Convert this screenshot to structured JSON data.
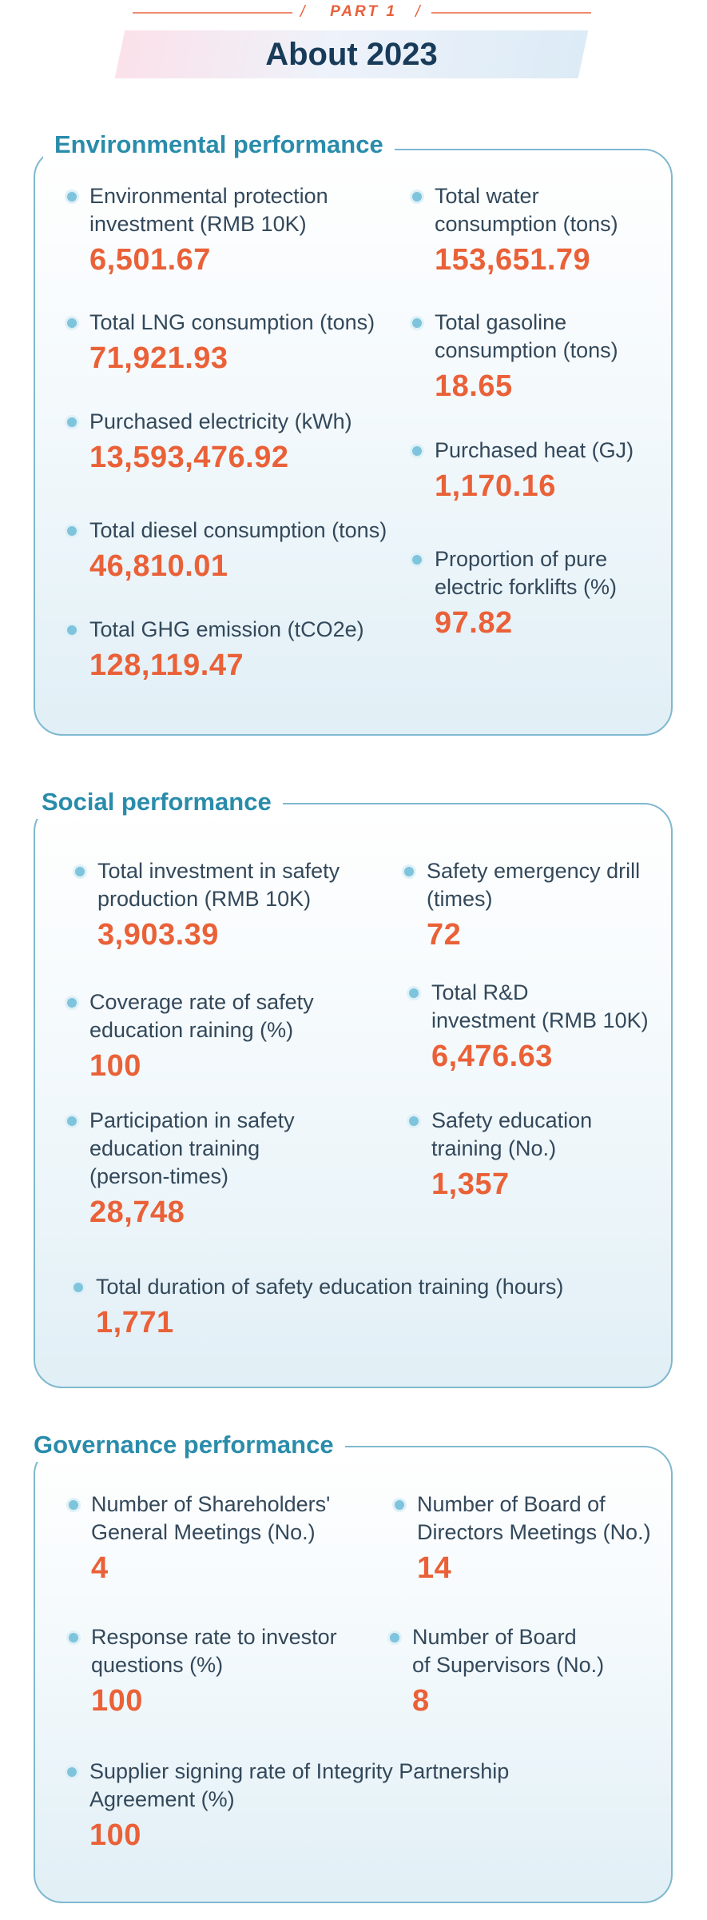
{
  "header": {
    "part_label": "PART 1",
    "slash": "/",
    "title": "About 2023"
  },
  "environmental": {
    "title": "Environmental performance",
    "items": [
      {
        "label": "Environmental protection\ninvestment (RMB 10K)",
        "value": "6,501.67"
      },
      {
        "label": "Total water\nconsumption (tons)",
        "value": "153,651.79"
      },
      {
        "label": "Total LNG consumption (tons)",
        "value": "71,921.93"
      },
      {
        "label": "Total gasoline\nconsumption (tons)",
        "value": "18.65"
      },
      {
        "label": "Purchased electricity (kWh)",
        "value": "13,593,476.92"
      },
      {
        "label": "Purchased heat (GJ)",
        "value": "1,170.16"
      },
      {
        "label": "Total diesel consumption (tons)",
        "value": "46,810.01"
      },
      {
        "label": "Proportion of pure\nelectric forklifts (%)",
        "value": "97.82"
      },
      {
        "label": "Total GHG emission (tCO2e)",
        "value": "128,119.47"
      }
    ]
  },
  "social": {
    "title": "Social performance",
    "items": [
      {
        "label": "Total investment in safety\nproduction (RMB 10K)",
        "value": "3,903.39"
      },
      {
        "label": "Safety emergency drill\n(times)",
        "value": "72"
      },
      {
        "label": "Coverage rate of safety\neducation raining (%)",
        "value": "100"
      },
      {
        "label": "Total R&D\ninvestment (RMB 10K)",
        "value": "6,476.63"
      },
      {
        "label": "Participation in safety\neducation training\n (person-times)",
        "value": "28,748"
      },
      {
        "label": "Safety education\ntraining (No.)",
        "value": "1,357"
      },
      {
        "label": "Total duration of safety education training (hours)",
        "value": "1,771"
      }
    ]
  },
  "governance": {
    "title": "Governance performance",
    "items": [
      {
        "label": "Number of Shareholders'\nGeneral Meetings (No.)",
        "value": "4"
      },
      {
        "label": "Number of Board of\nDirectors Meetings (No.)",
        "value": "14"
      },
      {
        "label": "Response rate to investor\nquestions (%)",
        "value": "100"
      },
      {
        "label": "Number of Board\nof Supervisors (No.)",
        "value": "8"
      },
      {
        "label": "Supplier signing rate of Integrity Partnership\nAgreement (%)",
        "value": "100"
      }
    ]
  },
  "colors": {
    "accent_orange": "#ea6138",
    "section_blue": "#2a8cab",
    "title_navy": "#183b59",
    "panel_border": "#7fb8cf"
  }
}
